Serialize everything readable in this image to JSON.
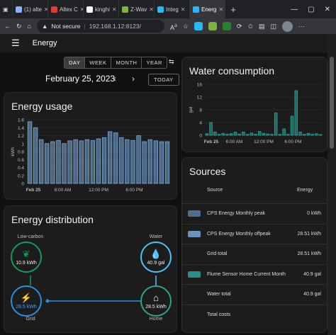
{
  "browser": {
    "tabs": [
      {
        "label": "(1) alte",
        "color": "#8ab4f8",
        "active": false
      },
      {
        "label": "Altex C",
        "color": "#e53935",
        "active": false
      },
      {
        "label": "kinghi",
        "color": "#ffffff",
        "active": false
      },
      {
        "label": "Z-Wav",
        "color": "#7cb342",
        "active": false
      },
      {
        "label": "Integ",
        "color": "#29b6f6",
        "active": false
      },
      {
        "label": "Energ",
        "color": "#29b6f6",
        "active": true
      }
    ],
    "newtab_label": "+",
    "not_secure": "Not secure",
    "url": "192.168.1.12:8123/"
  },
  "app": {
    "title": "Energy",
    "periods": [
      "DAY",
      "WEEK",
      "MONTH",
      "YEAR"
    ],
    "selected_period": "DAY",
    "date": "February 25, 2023",
    "today_label": "TODAY"
  },
  "energy_usage": {
    "title": "Energy usage",
    "chart_data": {
      "type": "bar",
      "ylabel": "kWh",
      "ylim": [
        0,
        1.6
      ],
      "yticks": [
        "1.6",
        "1.4",
        "1.2",
        "1",
        "0.8",
        "0.6",
        "0.4",
        "0.2",
        "0"
      ],
      "xticks": [
        "Feb 25",
        "6:00 AM",
        "12:00 PM",
        "6:00 PM"
      ],
      "values": [
        1.55,
        1.4,
        1.1,
        1.0,
        1.05,
        1.08,
        1.0,
        1.07,
        1.1,
        1.07,
        1.1,
        1.08,
        1.12,
        1.15,
        1.3,
        1.27,
        1.15,
        1.1,
        1.08,
        1.2,
        1.05,
        1.1,
        1.07,
        1.05,
        1.05
      ],
      "color": "#7aa7d6"
    }
  },
  "water": {
    "title": "Water consumption",
    "chart_data": {
      "type": "bar",
      "ylabel": "gal",
      "ylim": [
        0,
        16
      ],
      "yticks": [
        "16",
        "12",
        "8",
        "4",
        "0"
      ],
      "xticks": [
        "Feb 25",
        "6:00 AM",
        "12:00 PM",
        "6:00 PM"
      ],
      "values": [
        0.5,
        4,
        1,
        0.3,
        0.6,
        0.3,
        0.5,
        1,
        0.4,
        1,
        0.3,
        0.7,
        0.3,
        1.2,
        0.6,
        0.4,
        0.3,
        7,
        0.3,
        2,
        0.3,
        6,
        14,
        1,
        0.3,
        0.6,
        0.3,
        0.5,
        0.2
      ],
      "color": "#26a69a"
    }
  },
  "distribution": {
    "title": "Energy distribution",
    "low_carbon": {
      "label": "Low-carbon",
      "value": "10.9 kWh",
      "color": "#0f9d58"
    },
    "water": {
      "label": "Water",
      "value": "40.9 gal",
      "color": "#4fc3f7"
    },
    "grid": {
      "label": "Grid",
      "value": "28.5 kWh",
      "color": "#2a8de0"
    },
    "home": {
      "label": "Home",
      "value": "28.5 kWh",
      "color": "#2ea38f"
    }
  },
  "sources": {
    "title": "Sources",
    "col_source": "Source",
    "col_energy": "Energy",
    "rows": [
      {
        "name": "CPS Energy Monthly peak",
        "value": "0 kWh",
        "swatch": "#4a6d92"
      },
      {
        "name": "CPS Energy Monthly offpeak",
        "value": "28.51 kWh",
        "swatch": "#6d93bd"
      },
      {
        "name": "Grid total",
        "value": "28.51 kWh",
        "swatch": ""
      },
      {
        "name": "Flume Sensor Home Current Month",
        "value": "40.9 gal",
        "swatch": "#2a8c8c"
      },
      {
        "name": "Water total",
        "value": "40.9 gal",
        "swatch": ""
      },
      {
        "name": "Total costs",
        "value": "",
        "swatch": ""
      }
    ]
  }
}
